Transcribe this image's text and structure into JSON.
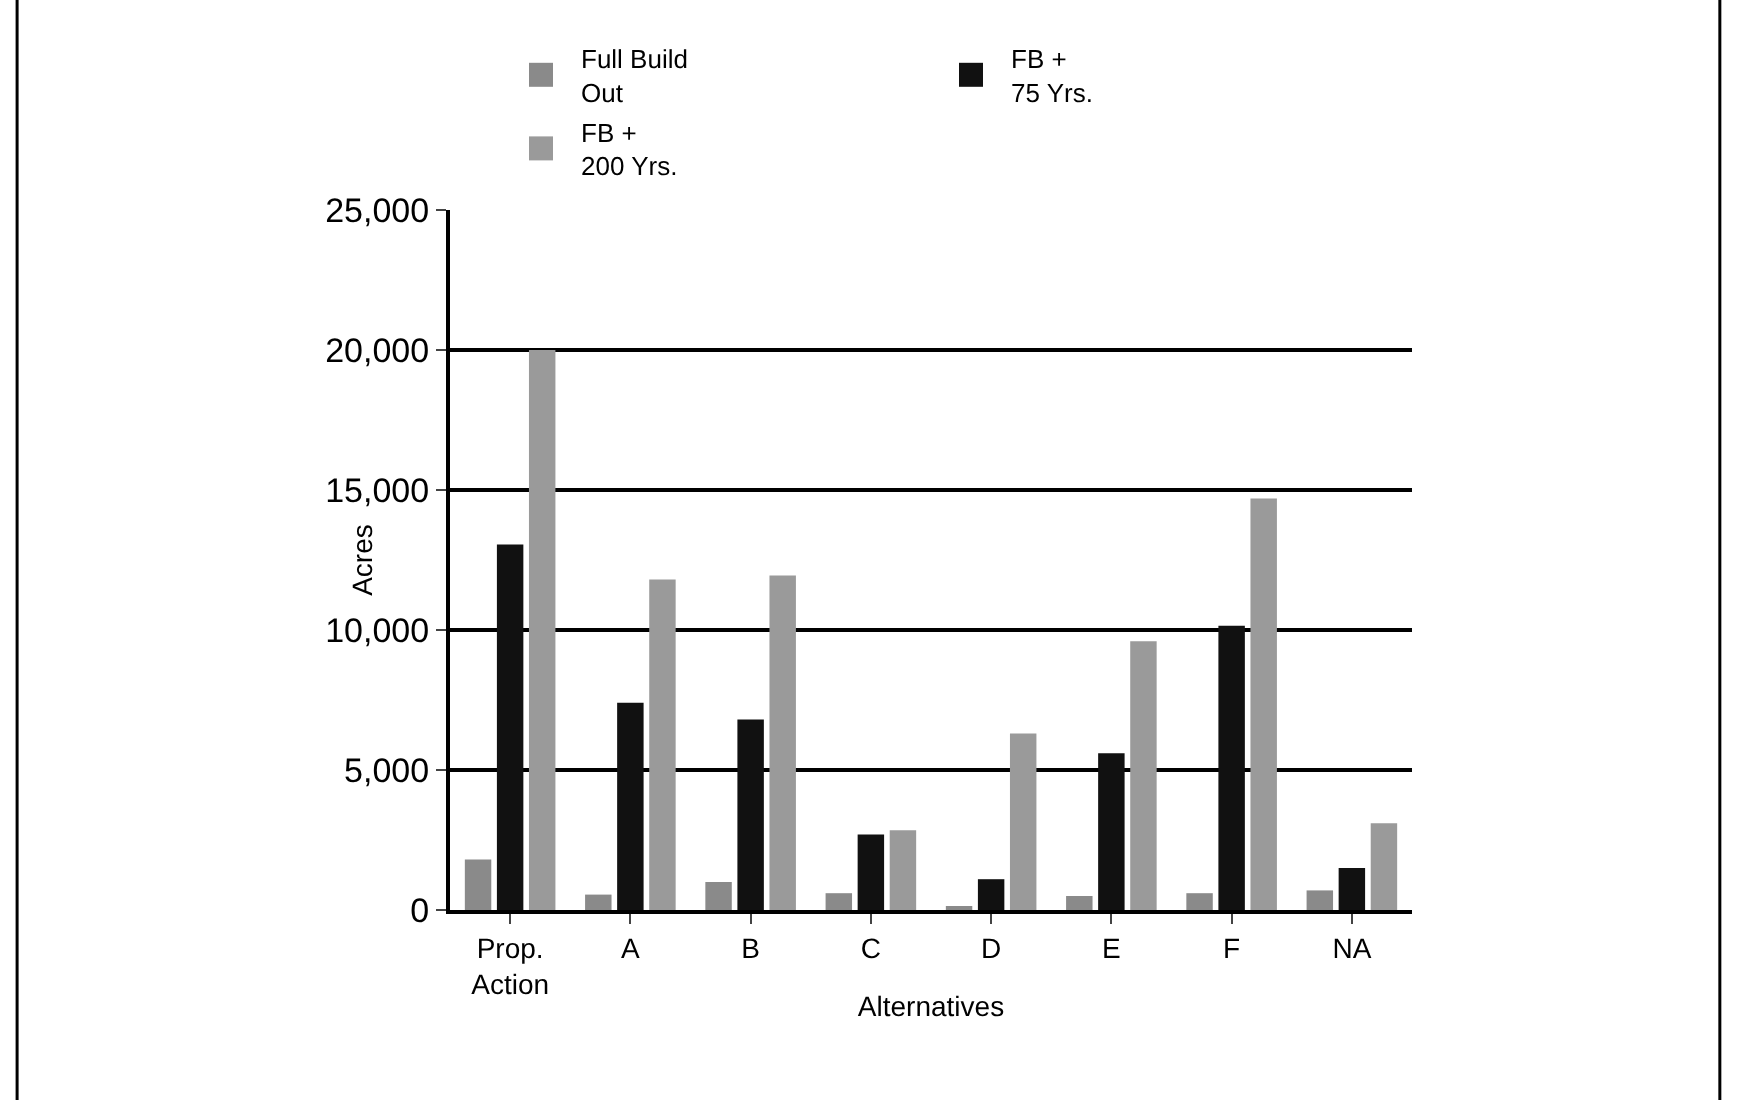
{
  "chart_data": {
    "type": "bar",
    "xlabel": "Alternatives",
    "ylabel": "Acres",
    "categories": [
      "Prop.\nAction",
      "A",
      "B",
      "C",
      "D",
      "E",
      "F",
      "NA"
    ],
    "series": [
      {
        "name": "Full Build\nOut",
        "color": "#8a8a8a",
        "values": [
          1800,
          550,
          1000,
          600,
          100,
          500,
          600,
          700
        ]
      },
      {
        "name": "FB +\n75 Yrs.",
        "color": "#111111",
        "values": [
          13050,
          7400,
          6800,
          2700,
          1100,
          5600,
          10150,
          1500
        ]
      },
      {
        "name": "FB +\n200 Yrs.",
        "color": "#9a9a9a",
        "values": [
          20000,
          11800,
          11950,
          2850,
          6300,
          9600,
          14700,
          3100
        ]
      }
    ],
    "ylim": [
      0,
      25000
    ],
    "yticks": [
      {
        "value": 0,
        "label": "0"
      },
      {
        "value": 5000,
        "label": "5,000"
      },
      {
        "value": 10000,
        "label": "10,000"
      },
      {
        "value": 15000,
        "label": "15,000"
      },
      {
        "value": 20000,
        "label": "20,000"
      },
      {
        "value": 25000,
        "label": "25,000"
      }
    ],
    "grid": "y",
    "legend": "top"
  }
}
